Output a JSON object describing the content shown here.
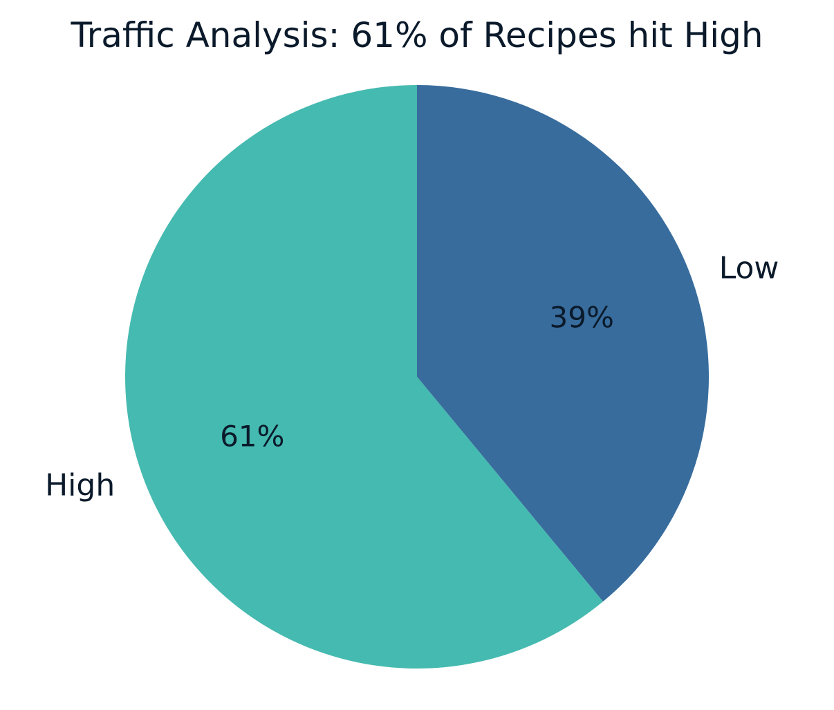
{
  "chart_data": {
    "type": "pie",
    "title": "Traffic Analysis: 61% of Recipes hit High",
    "categories": [
      "Low",
      "High"
    ],
    "values": [
      39,
      61
    ],
    "value_labels": [
      "39%",
      "61%"
    ],
    "colors": [
      "#386c9d",
      "#45bab0"
    ],
    "start_angle": "12 o'clock",
    "direction": "clockwise"
  }
}
